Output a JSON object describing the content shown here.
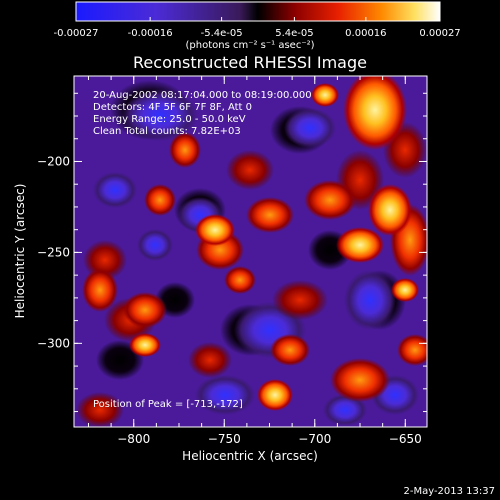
{
  "colorbar": {
    "tick_labels": [
      "-0.00027",
      "-0.00016",
      "-5.4e-05",
      "5.4e-05",
      "0.00016",
      "0.00027"
    ],
    "tick_values": [
      -0.00027,
      -0.00016,
      -5.4e-05,
      5.4e-05,
      0.00016,
      0.00027
    ],
    "range": [
      -0.00027,
      0.00027
    ],
    "unit_label": "(photons cm⁻² s⁻¹ asec⁻²)",
    "colors": [
      "#1a1aff",
      "#4b2bd6",
      "#3a1a5a",
      "#000000",
      "#8a0000",
      "#e82000",
      "#ff8a00",
      "#ffe060",
      "#ffffff"
    ]
  },
  "chart_data": {
    "type": "heatmap",
    "title": "Reconstructed RHESSI Image",
    "xlabel": "Heliocentric X (arcsec)",
    "ylabel": "Heliocentric Y (arcsec)",
    "xlim": [
      -833,
      -638
    ],
    "ylim": [
      -346,
      -153
    ],
    "x_ticks": [
      -800,
      -750,
      -700,
      -650
    ],
    "y_ticks": [
      -200,
      -250,
      -300
    ],
    "x_tick_labels": [
      "−800",
      "−750",
      "−700",
      "−650"
    ],
    "y_tick_labels": [
      "−200",
      "−250",
      "−300"
    ],
    "annotations": [
      "20-Aug-2002 08:17:04.000 to 08:19:00.000",
      "Detectors: 4F 5F 6F 7F 8F, Att 0",
      "Energy Range: 25.0 - 50.0 keV",
      "Clean     Total counts: 7.82E+03"
    ],
    "peak_label": "Position of Peak = [-713,-172]",
    "peak": [
      -713,
      -172
    ]
  },
  "footer": {
    "date": "2-May-2013 13:37"
  }
}
